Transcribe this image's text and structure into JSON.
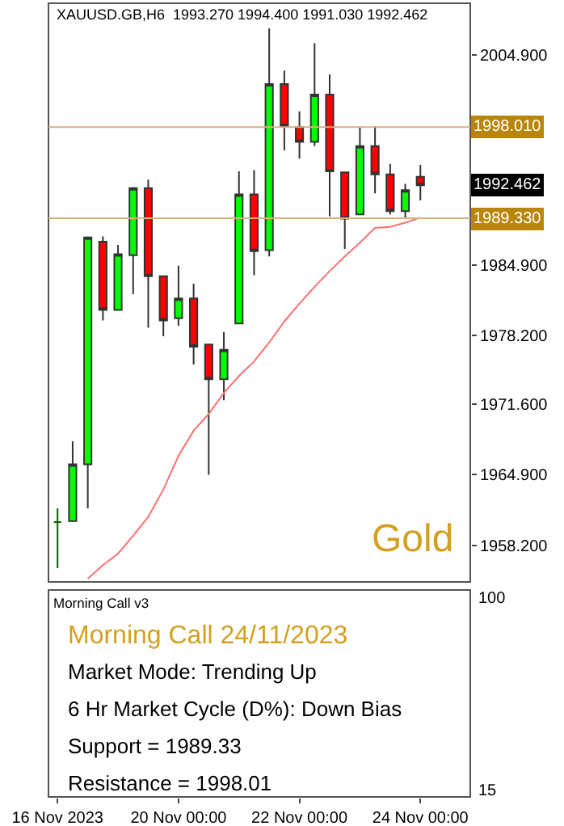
{
  "chart_data": [
    {
      "type": "candlestick",
      "title": "XAUUSD.GB,H6  1993.270 1994.400 1991.030 1992.462",
      "categories": [
        null,
        null,
        null,
        null,
        null,
        null,
        null,
        null,
        null,
        null,
        null,
        null,
        null,
        null,
        null,
        null,
        null,
        null,
        null,
        null,
        null,
        null,
        null,
        null,
        null
      ],
      "ohlc": [
        [
          1960.4,
          1961.7,
          1956.0,
          1960.4
        ],
        [
          1960.5,
          1968.1,
          1960.5,
          1965.9
        ],
        [
          1965.9,
          1987.6,
          1961.7,
          1987.5
        ],
        [
          1987.1,
          1987.6,
          1979.6,
          1980.6
        ],
        [
          1980.6,
          1986.8,
          1980.6,
          1985.9
        ],
        [
          1985.8,
          1992.3,
          1982.1,
          1992.2
        ],
        [
          1992.2,
          1993.0,
          1978.9,
          1983.8
        ],
        [
          1983.8,
          1983.8,
          1978.1,
          1979.6
        ],
        [
          1979.8,
          1984.8,
          1979.1,
          1981.7
        ],
        [
          1981.7,
          1983.1,
          1975.4,
          1977.1
        ],
        [
          1977.3,
          1977.3,
          1964.9,
          1974.0
        ],
        [
          1974.0,
          1978.5,
          1972.0,
          1976.8
        ],
        [
          1979.3,
          1993.8,
          1979.3,
          1991.6
        ],
        [
          1991.6,
          1993.9,
          1983.9,
          1986.2
        ],
        [
          1986.3,
          2007.4,
          1985.7,
          2002.1
        ],
        [
          2002.1,
          2003.4,
          1995.8,
          1998.1
        ],
        [
          1998.0,
          1999.5,
          1995.0,
          1996.6
        ],
        [
          1996.6,
          2006.0,
          1996.2,
          2001.1
        ],
        [
          2001.1,
          2003.0,
          1989.5,
          1993.8
        ],
        [
          1993.7,
          1993.7,
          1986.4,
          1989.3
        ],
        [
          1989.7,
          1998.0,
          1989.7,
          1996.2
        ],
        [
          1996.2,
          1998.1,
          1991.7,
          1993.5
        ],
        [
          1993.5,
          1994.5,
          1989.7,
          1990.0
        ],
        [
          1990.0,
          1992.6,
          1989.4,
          1992.0
        ],
        [
          1993.27,
          1994.4,
          1991.03,
          1992.462
        ]
      ],
      "series": [
        {
          "type": "line",
          "color": "#ff7070",
          "values": [
            null,
            null,
            1955.0,
            1956.3,
            1957.4,
            1959.1,
            1960.9,
            1963.5,
            1966.7,
            1969.1,
            1970.7,
            1972.7,
            1974.3,
            1975.7,
            1977.5,
            1979.5,
            1981.2,
            1982.8,
            1984.3,
            1985.7,
            1987.0,
            1988.4,
            1988.5,
            1988.9,
            1989.4
          ]
        }
      ],
      "colors": [
        "#006400",
        "#00ff00",
        "#00ff00",
        "#ff0000",
        "#00ff00",
        "#00ff00",
        "#ff0000",
        "#ff0000",
        "#00ff00",
        "#ff0000",
        "#ff0000",
        "#00ff00",
        "#00ff00",
        "#ff0000",
        "#00ff00",
        "#ff0000",
        "#ff0000",
        "#00ff00",
        "#ff0000",
        "#ff0000",
        "#00ff00",
        "#ff0000",
        "#ff0000",
        "#00ff00",
        "#ff0000"
      ],
      "ylim": [
        1954.7,
        2009.8
      ],
      "yticks": [
        {
          "value": 2004.9,
          "label": "2004.900"
        },
        {
          "value": 1984.9,
          "label": "1984.900"
        },
        {
          "value": 1978.2,
          "label": "1978.200"
        },
        {
          "value": 1971.6,
          "label": "1971.600"
        },
        {
          "value": 1964.9,
          "label": "1964.900"
        },
        {
          "value": 1958.2,
          "label": "1958.200"
        }
      ],
      "ref_lines": [
        {
          "axis": "y",
          "value": 1998.01,
          "label": "1998.010",
          "color": "#d9b27a"
        },
        {
          "axis": "y",
          "value": 1989.33,
          "label": "1989.330",
          "color": "#d9b27a"
        }
      ],
      "annotations": [
        "Gold",
        "1992.462"
      ],
      "tick_labels": "y",
      "grid": false,
      "marker": "none"
    },
    {
      "type": "other",
      "categories": [
        "16 Nov 2023",
        null,
        null,
        null,
        null,
        null,
        null,
        null,
        "20 Nov 00:00",
        null,
        null,
        null,
        null,
        null,
        null,
        null,
        "22 Nov 00:00",
        null,
        null,
        null,
        null,
        null,
        null,
        null,
        "24 Nov 00:00"
      ],
      "annotations": [
        "Morning Call v3",
        "Morning Call 24/11/2023",
        "Market Mode: Trending Up",
        "6 Hr Market Cycle (D%): Down Bias",
        "Support = 1989.33",
        "Resistance = 1998.01",
        "100",
        "15"
      ]
    }
  ]
}
